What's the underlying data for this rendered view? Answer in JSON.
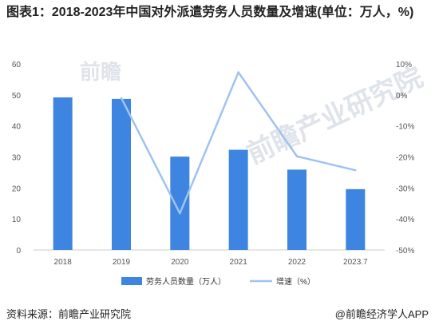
{
  "title": "图表1：2018-2023年中国对外派遣劳务人员数量及增速(单位：万人，%)",
  "watermark": [
    "前瞻",
    "前瞻产业研究院"
  ],
  "footer": {
    "source": "资料来源：前瞻产业研究院",
    "app": "@前瞻经济学人APP"
  },
  "colors": {
    "bar": "#3d85e0",
    "line": "#9fc3ef",
    "axis": "#cccccc"
  },
  "chart_data": {
    "type": "bar",
    "title": "图表1：2018-2023年中国对外派遣劳务人员数量及增速(单位：万人，%)",
    "categories": [
      "2018",
      "2019",
      "2020",
      "2021",
      "2022",
      "2023.7"
    ],
    "series": [
      {
        "name": "劳务人员数量（万人）",
        "type": "bar",
        "axis": "left",
        "values": [
          49.2,
          48.7,
          30.1,
          32.3,
          25.9,
          19.6
        ]
      },
      {
        "name": "增速（%）",
        "type": "line",
        "axis": "right",
        "values": [
          null,
          -1.0,
          -38.2,
          7.3,
          -19.8,
          -24.3
        ]
      }
    ],
    "ylim_left": [
      0,
      60
    ],
    "yticks_left": [
      "0",
      "10",
      "20",
      "30",
      "40",
      "50",
      "60"
    ],
    "ylim_right": [
      -50,
      10
    ],
    "yticks_right": [
      "-50%",
      "-40%",
      "-30%",
      "-20%",
      "-10%",
      "0%",
      "10%"
    ],
    "legend": "bottom-center",
    "grid": false
  }
}
